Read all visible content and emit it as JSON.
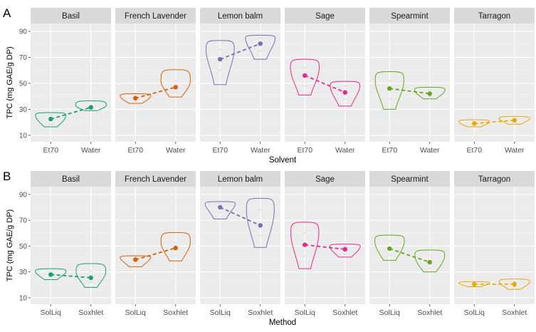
{
  "chart_data": [
    {
      "type": "violin",
      "panel_label": "A",
      "xlabel": "Solvent",
      "ylabel": "TPC (mg GAE/g DP)",
      "ylim": [
        5,
        96
      ],
      "yticks": [
        10,
        30,
        50,
        70,
        90
      ],
      "grid": true,
      "facets": [
        {
          "name": "Basil",
          "color": "#1b9e77",
          "groups": [
            {
              "label": "Et70",
              "mean": 22.5,
              "min": 16.5,
              "max": 27.5,
              "q1": 18.5,
              "q3": 25.5
            },
            {
              "label": "Water",
              "mean": 31.5,
              "min": 29.0,
              "max": 36.5,
              "q1": 30.0,
              "q3": 33.0
            }
          ]
        },
        {
          "name": "French Lavender",
          "color": "#d95f02",
          "groups": [
            {
              "label": "Et70",
              "mean": 38.5,
              "min": 34.5,
              "max": 42.0,
              "q1": 36.0,
              "q3": 40.5
            },
            {
              "label": "Water",
              "mean": 47.0,
              "min": 39.5,
              "max": 60.5,
              "q1": 43.0,
              "q3": 52.0
            }
          ]
        },
        {
          "name": "Lemon balm",
          "color": "#7570b3",
          "groups": [
            {
              "label": "Et70",
              "mean": 68.5,
              "min": 49.0,
              "max": 83.0,
              "q1": 60.0,
              "q3": 76.0
            },
            {
              "label": "Water",
              "mean": 80.5,
              "min": 68.5,
              "max": 87.0,
              "q1": 75.0,
              "q3": 85.0
            }
          ]
        },
        {
          "name": "Sage",
          "color": "#e7298a",
          "groups": [
            {
              "label": "Et70",
              "mean": 56.0,
              "min": 41.0,
              "max": 68.5,
              "q1": 48.0,
              "q3": 62.0
            },
            {
              "label": "Water",
              "mean": 43.0,
              "min": 32.5,
              "max": 51.5,
              "q1": 38.0,
              "q3": 48.0
            }
          ]
        },
        {
          "name": "Spearmint",
          "color": "#66a61e",
          "groups": [
            {
              "label": "Et70",
              "mean": 46.0,
              "min": 30.0,
              "max": 59.0,
              "q1": 38.0,
              "q3": 52.0
            },
            {
              "label": "Water",
              "mean": 42.0,
              "min": 38.0,
              "max": 47.0,
              "q1": 40.0,
              "q3": 45.0
            }
          ]
        },
        {
          "name": "Tarragon",
          "color": "#e6ab02",
          "groups": [
            {
              "label": "Et70",
              "mean": 19.0,
              "min": 16.5,
              "max": 22.0,
              "q1": 17.5,
              "q3": 20.5
            },
            {
              "label": "Water",
              "mean": 21.5,
              "min": 18.5,
              "max": 24.5,
              "q1": 20.0,
              "q3": 23.0
            }
          ]
        }
      ]
    },
    {
      "type": "violin",
      "panel_label": "B",
      "xlabel": "Method",
      "ylabel": "TPC (mg GAE/g DP)",
      "ylim": [
        5,
        96
      ],
      "yticks": [
        10,
        30,
        50,
        70,
        90
      ],
      "grid": true,
      "facets": [
        {
          "name": "Basil",
          "color": "#1b9e77",
          "groups": [
            {
              "label": "SolLiq",
              "mean": 28.0,
              "min": 24.0,
              "max": 32.5,
              "q1": 26.0,
              "q3": 30.5
            },
            {
              "label": "Soxhlet",
              "mean": 25.5,
              "min": 18.0,
              "max": 36.5,
              "q1": 22.0,
              "q3": 30.0
            }
          ]
        },
        {
          "name": "French Lavender",
          "color": "#d95f02",
          "groups": [
            {
              "label": "SolLiq",
              "mean": 39.5,
              "min": 34.0,
              "max": 42.5,
              "q1": 36.5,
              "q3": 41.5
            },
            {
              "label": "Soxhlet",
              "mean": 48.5,
              "min": 38.5,
              "max": 60.5,
              "q1": 43.0,
              "q3": 53.0
            }
          ]
        },
        {
          "name": "Lemon balm",
          "color": "#7570b3",
          "groups": [
            {
              "label": "SolLiq",
              "mean": 80.0,
              "min": 71.0,
              "max": 84.5,
              "q1": 76.0,
              "q3": 83.0
            },
            {
              "label": "Soxhlet",
              "mean": 66.0,
              "min": 49.0,
              "max": 87.0,
              "q1": 58.0,
              "q3": 78.0
            }
          ]
        },
        {
          "name": "Sage",
          "color": "#e7298a",
          "groups": [
            {
              "label": "SolLiq",
              "mean": 51.0,
              "min": 32.5,
              "max": 68.5,
              "q1": 42.0,
              "q3": 60.0
            },
            {
              "label": "Soxhlet",
              "mean": 47.5,
              "min": 41.5,
              "max": 51.5,
              "q1": 44.0,
              "q3": 50.0
            }
          ]
        },
        {
          "name": "Spearmint",
          "color": "#66a61e",
          "groups": [
            {
              "label": "SolLiq",
              "mean": 48.0,
              "min": 39.0,
              "max": 58.5,
              "q1": 43.0,
              "q3": 54.0
            },
            {
              "label": "Soxhlet",
              "mean": 37.5,
              "min": 30.0,
              "max": 47.0,
              "q1": 33.0,
              "q3": 43.0
            }
          ]
        },
        {
          "name": "Tarragon",
          "color": "#e6ab02",
          "groups": [
            {
              "label": "SolLiq",
              "mean": 20.5,
              "min": 18.5,
              "max": 22.5,
              "q1": 19.5,
              "q3": 21.5
            },
            {
              "label": "Soxhlet",
              "mean": 20.5,
              "min": 16.5,
              "max": 24.5,
              "q1": 18.5,
              "q3": 22.5
            }
          ]
        }
      ]
    }
  ]
}
